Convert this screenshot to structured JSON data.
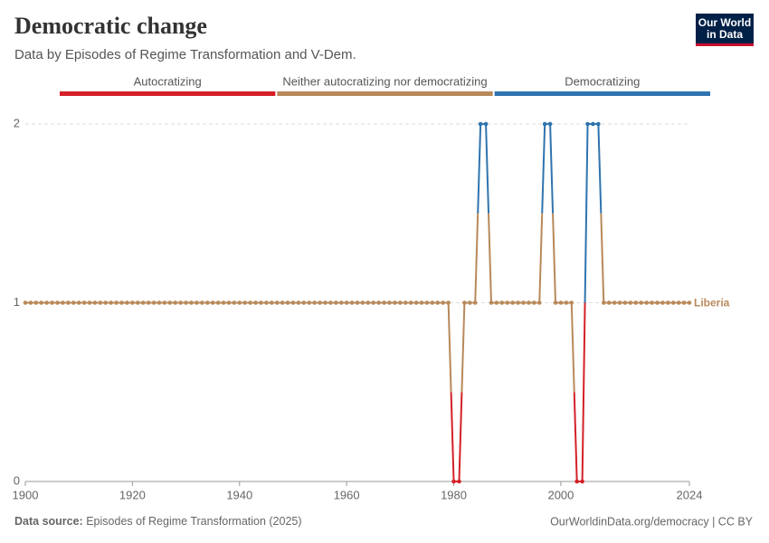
{
  "chart_data": {
    "type": "line",
    "title": "Democratic change",
    "subtitle": "Data by Episodes of Regime Transformation and V-Dem.",
    "logo": [
      "Our World",
      "in Data"
    ],
    "source_label": "Data source:",
    "source": "Episodes of Regime Transformation (2025)",
    "credit": "OurWorldinData.org/democracy | CC BY",
    "color_scale": [
      {
        "value": 0,
        "label": "Autocratizing",
        "color": "#d42027"
      },
      {
        "value": 1,
        "label": "Neither autocratizing nor democratizing",
        "color": "#b8895a"
      },
      {
        "value": 2,
        "label": "Democratizing",
        "color": "#2f74ae"
      }
    ],
    "xlim": [
      1900,
      2024
    ],
    "xticks": [
      1900,
      1920,
      1940,
      1960,
      1980,
      2000,
      2024
    ],
    "ylim": [
      0,
      2
    ],
    "yticks": [
      0,
      1,
      2
    ],
    "grid": true,
    "x": [
      1900,
      1901,
      1902,
      1903,
      1904,
      1905,
      1906,
      1907,
      1908,
      1909,
      1910,
      1911,
      1912,
      1913,
      1914,
      1915,
      1916,
      1917,
      1918,
      1919,
      1920,
      1921,
      1922,
      1923,
      1924,
      1925,
      1926,
      1927,
      1928,
      1929,
      1930,
      1931,
      1932,
      1933,
      1934,
      1935,
      1936,
      1937,
      1938,
      1939,
      1940,
      1941,
      1942,
      1943,
      1944,
      1945,
      1946,
      1947,
      1948,
      1949,
      1950,
      1951,
      1952,
      1953,
      1954,
      1955,
      1956,
      1957,
      1958,
      1959,
      1960,
      1961,
      1962,
      1963,
      1964,
      1965,
      1966,
      1967,
      1968,
      1969,
      1970,
      1971,
      1972,
      1973,
      1974,
      1975,
      1976,
      1977,
      1978,
      1979,
      1980,
      1981,
      1982,
      1983,
      1984,
      1985,
      1986,
      1987,
      1988,
      1989,
      1990,
      1991,
      1992,
      1993,
      1994,
      1995,
      1996,
      1997,
      1998,
      1999,
      2000,
      2001,
      2002,
      2003,
      2004,
      2005,
      2006,
      2007,
      2008,
      2009,
      2010,
      2011,
      2012,
      2013,
      2014,
      2015,
      2016,
      2017,
      2018,
      2019,
      2020,
      2021,
      2022,
      2023,
      2024
    ],
    "series": [
      {
        "name": "Liberia",
        "color": "#b8895a",
        "values": [
          1,
          1,
          1,
          1,
          1,
          1,
          1,
          1,
          1,
          1,
          1,
          1,
          1,
          1,
          1,
          1,
          1,
          1,
          1,
          1,
          1,
          1,
          1,
          1,
          1,
          1,
          1,
          1,
          1,
          1,
          1,
          1,
          1,
          1,
          1,
          1,
          1,
          1,
          1,
          1,
          1,
          1,
          1,
          1,
          1,
          1,
          1,
          1,
          1,
          1,
          1,
          1,
          1,
          1,
          1,
          1,
          1,
          1,
          1,
          1,
          1,
          1,
          1,
          1,
          1,
          1,
          1,
          1,
          1,
          1,
          1,
          1,
          1,
          1,
          1,
          1,
          1,
          1,
          1,
          1,
          0,
          0,
          1,
          1,
          1,
          2,
          2,
          1,
          1,
          1,
          1,
          1,
          1,
          1,
          1,
          1,
          1,
          2,
          2,
          1,
          1,
          1,
          1,
          0,
          0,
          2,
          2,
          2,
          1,
          1,
          1,
          1,
          1,
          1,
          1,
          1,
          1,
          1,
          1,
          1,
          1,
          1,
          1,
          1,
          1
        ]
      }
    ]
  }
}
